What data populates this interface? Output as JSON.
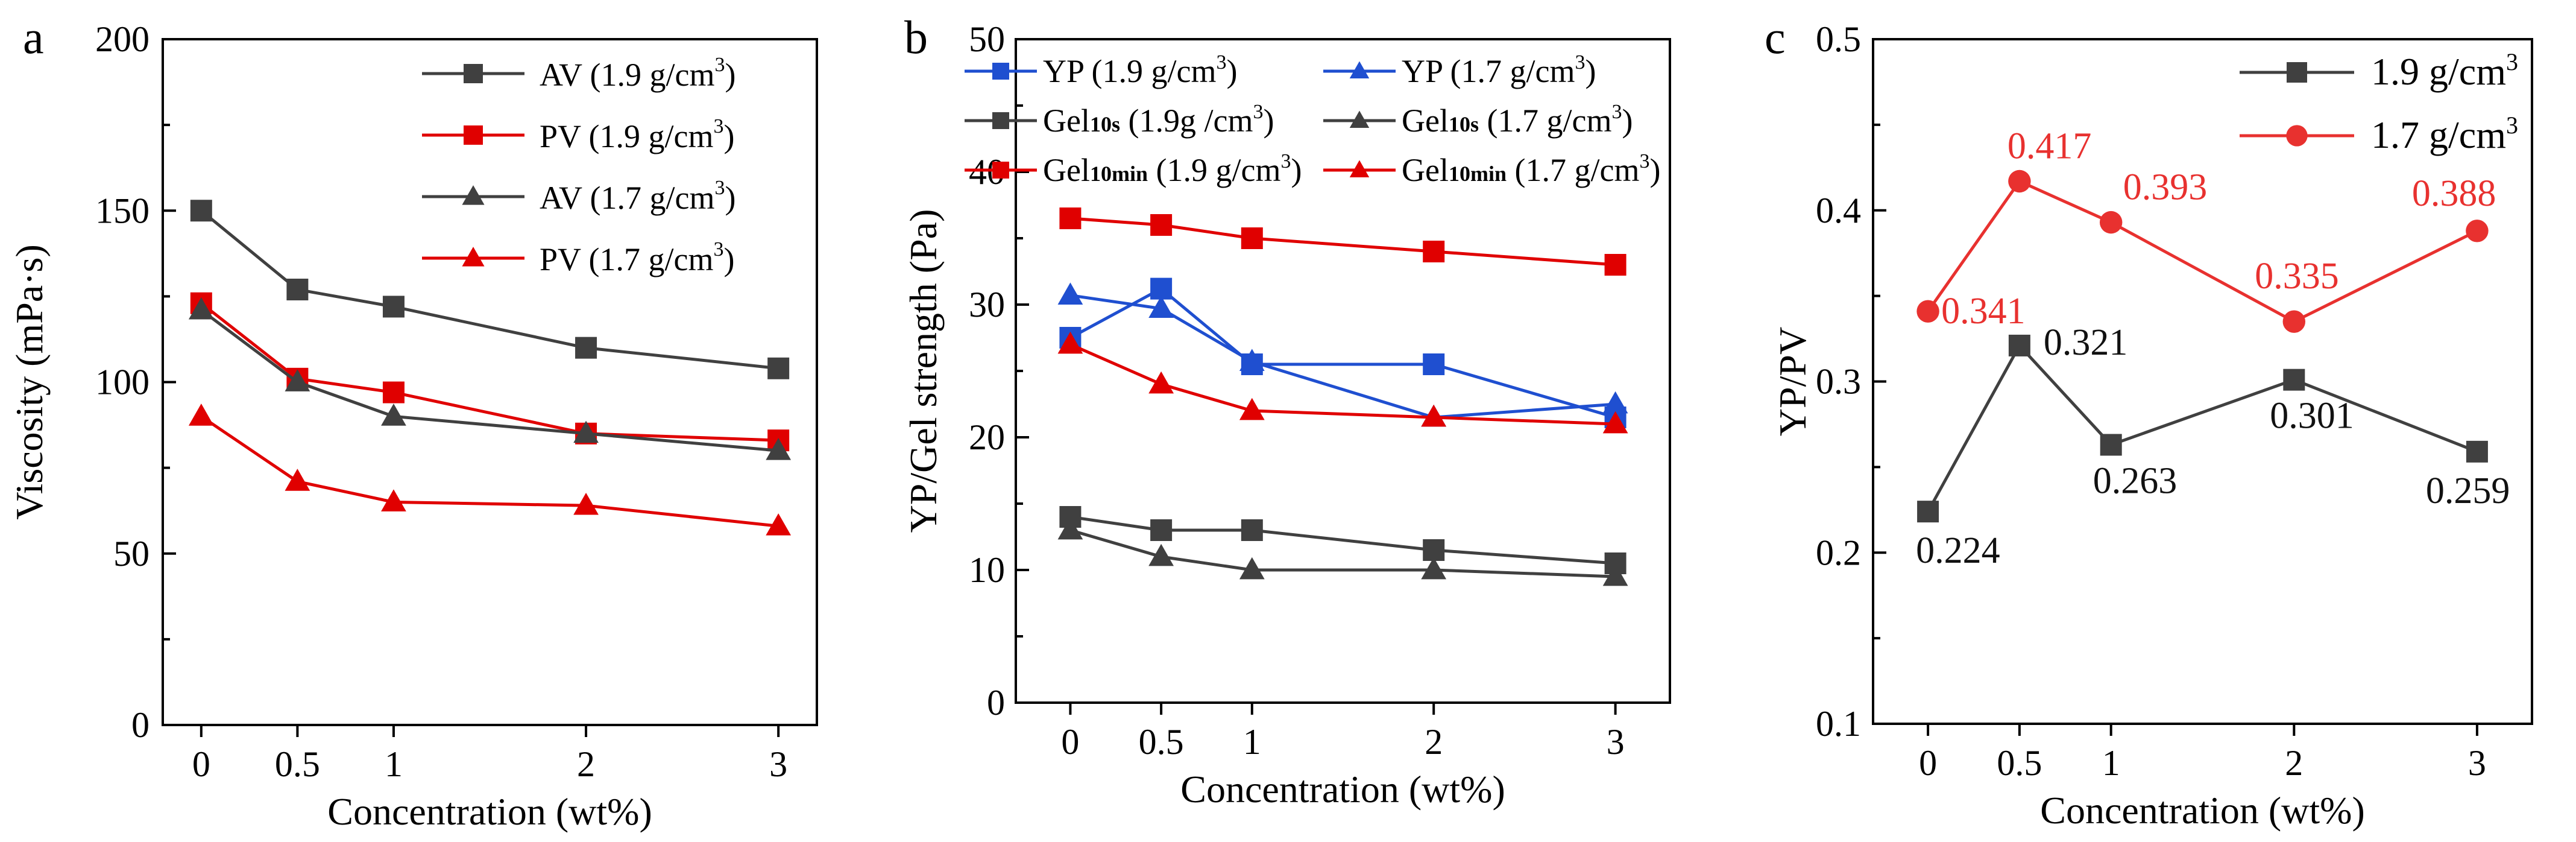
{
  "chart_data": [
    {
      "panel": "a",
      "type": "line",
      "xlabel": "Concentration (wt%)",
      "ylabel": "Viscosity (mPa·s)",
      "x": [
        0,
        0.5,
        1,
        2,
        3
      ],
      "x_tick_labels": [
        "0",
        "0.5",
        "1",
        "2",
        "3"
      ],
      "ylim": [
        0,
        200
      ],
      "y_ticks": [
        0,
        50,
        100,
        150,
        200
      ],
      "xlim": [
        -0.2,
        3.2
      ],
      "legend_position": "top-right",
      "series": [
        {
          "name": "AV (1.9 g/cm³)",
          "label_main": "AV (1.9 g/cm",
          "marker": "square",
          "color": "#404040",
          "values": [
            150,
            127,
            122,
            110,
            104
          ]
        },
        {
          "name": "PV (1.9 g/cm³)",
          "label_main": "PV (1.9 g/cm",
          "marker": "square",
          "color": "#e00000",
          "values": [
            123,
            101,
            97,
            85,
            83
          ]
        },
        {
          "name": "AV (1.7 g/cm³)",
          "label_main": "AV (1.7 g/cm",
          "marker": "triangle",
          "color": "#404040",
          "values": [
            121,
            100,
            90,
            85,
            80
          ]
        },
        {
          "name": "PV (1.7 g/cm³)",
          "label_main": "PV (1.7 g/cm",
          "marker": "triangle",
          "color": "#e00000",
          "values": [
            90,
            71,
            65,
            64,
            58
          ]
        }
      ]
    },
    {
      "panel": "b",
      "type": "line",
      "xlabel": "Concentration (wt%)",
      "ylabel": "YP/Gel strength (Pa)",
      "x": [
        0,
        0.5,
        1,
        2,
        3
      ],
      "x_tick_labels": [
        "0",
        "0.5",
        "1",
        "2",
        "3"
      ],
      "ylim": [
        0,
        50
      ],
      "y_ticks": [
        0,
        10,
        20,
        30,
        40,
        50
      ],
      "xlim": [
        -0.3,
        3.3
      ],
      "legend_position": "top",
      "series": [
        {
          "name": "YP (1.9 g/cm³)",
          "label_main": "YP",
          "label_sub": "",
          "label_rest": " (1.9 g/cm",
          "marker": "square",
          "color": "#1f4fd0",
          "values": [
            27.5,
            31.2,
            25.5,
            25.5,
            21.5
          ]
        },
        {
          "name": "YP (1.7 g/cm³)",
          "label_main": "YP",
          "label_sub": "",
          "label_rest": " (1.7 g/cm",
          "marker": "triangle",
          "color": "#1f4fd0",
          "values": [
            30.7,
            29.7,
            25.7,
            21.5,
            22.5
          ]
        },
        {
          "name": "Gel10s (1.9g /cm³)",
          "label_main": "Gel",
          "label_sub": "10s",
          "label_rest": " (1.9g /cm",
          "marker": "square",
          "color": "#404040",
          "values": [
            14,
            13,
            13,
            11.5,
            10.5
          ]
        },
        {
          "name": "Gel10s (1.7 g/cm³)",
          "label_main": "Gel",
          "label_sub": "10s",
          "label_rest": " (1.7 g/cm",
          "marker": "triangle",
          "color": "#404040",
          "values": [
            13,
            11,
            10,
            10,
            9.5
          ]
        },
        {
          "name": "Gel10min (1.9 g/cm³)",
          "label_main": "Gel",
          "label_sub": "10min",
          "label_rest": " (1.9 g/cm",
          "marker": "square",
          "color": "#e00000",
          "values": [
            36.5,
            36,
            35,
            34,
            33
          ]
        },
        {
          "name": "Gel10min (1.7 g/cm³)",
          "label_main": "Gel",
          "label_sub": "10min",
          "label_rest": " (1.7 g/cm",
          "marker": "triangle",
          "color": "#e00000",
          "values": [
            27,
            24,
            22,
            21.5,
            21
          ]
        }
      ]
    },
    {
      "panel": "c",
      "type": "line",
      "xlabel": "Concentration (wt%)",
      "ylabel": "YP/PV",
      "x": [
        0,
        0.5,
        1,
        2,
        3
      ],
      "x_tick_labels": [
        "0",
        "0.5",
        "1",
        "2",
        "3"
      ],
      "ylim": [
        0.1,
        0.5
      ],
      "y_ticks": [
        0.1,
        0.2,
        0.3,
        0.4,
        0.5
      ],
      "y_tick_labels": [
        "0.1",
        "0.2",
        "0.3",
        "0.4",
        "0.5"
      ],
      "xlim": [
        -0.3,
        3.3
      ],
      "legend_position": "top-right",
      "series": [
        {
          "name": "1.9 g/cm³",
          "label_main": "1.9 g/cm",
          "marker": "square",
          "color": "#404040",
          "values": [
            0.224,
            0.321,
            0.263,
            0.301,
            0.259
          ],
          "data_labels": [
            "0.224",
            "0.321",
            "0.263",
            "0.301",
            "0.259"
          ]
        },
        {
          "name": "1.7 g/cm³",
          "label_main": "1.7 g/cm",
          "marker": "circle",
          "color": "#e8312f",
          "values": [
            0.341,
            0.417,
            0.393,
            0.335,
            0.388
          ],
          "data_labels": [
            "0.341",
            "0.417",
            "0.393",
            "0.335",
            "0.388"
          ]
        }
      ]
    }
  ],
  "superscript": "3"
}
